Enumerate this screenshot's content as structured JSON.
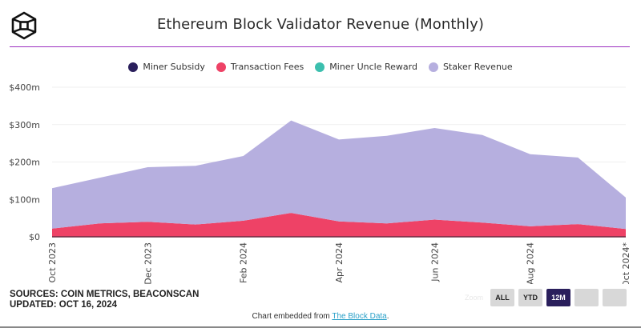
{
  "header": {
    "logo": "the-block-logo",
    "title": "Ethereum Block Validator Revenue (Monthly)"
  },
  "legend": [
    {
      "name": "Miner Subsidy",
      "color": "#2a1f5c"
    },
    {
      "name": "Transaction Fees",
      "color": "#ee4266"
    },
    {
      "name": "Miner Uncle Reward",
      "color": "#3cbfae"
    },
    {
      "name": "Staker Revenue",
      "color": "#b6afdf"
    }
  ],
  "chart_data": {
    "type": "area",
    "stacked": true,
    "title": "Ethereum Block Validator Revenue (Monthly)",
    "xlabel": "",
    "ylabel": "",
    "ylim": [
      0,
      400
    ],
    "y_unit": "USD millions",
    "y_ticks": [
      "$0",
      "$100m",
      "$200m",
      "$300m",
      "$400m"
    ],
    "y_tick_values": [
      0,
      100,
      200,
      300,
      400
    ],
    "grid": true,
    "legend_position": "top-center",
    "x": [
      "Oct 2023",
      "Nov 2023",
      "Dec 2023",
      "Jan 2024",
      "Feb 2024",
      "Mar 2024",
      "Apr 2024",
      "May 2024",
      "Jun 2024",
      "Jul 2024",
      "Aug 2024",
      "Sep 2024",
      "Oct 2024*"
    ],
    "x_tick_labels": [
      "Oct 2023",
      "Dec 2023",
      "Feb 2024",
      "Apr 2024",
      "Jun 2024",
      "Aug 2024",
      "Oct 2024*"
    ],
    "x_tick_indices": [
      0,
      2,
      4,
      6,
      8,
      10,
      12
    ],
    "series": [
      {
        "name": "Miner Subsidy",
        "color": "#2a1f5c",
        "values": [
          0,
          0,
          0,
          0,
          0,
          0,
          0,
          0,
          0,
          0,
          0,
          0,
          0
        ]
      },
      {
        "name": "Transaction Fees",
        "color": "#ee4266",
        "values": [
          22,
          36,
          40,
          33,
          43,
          64,
          41,
          36,
          46,
          38,
          28,
          34,
          21
        ]
      },
      {
        "name": "Miner Uncle Reward",
        "color": "#3cbfae",
        "values": [
          0,
          0,
          0,
          0,
          0,
          0,
          0,
          0,
          0,
          0,
          0,
          0,
          0
        ]
      },
      {
        "name": "Staker Revenue",
        "color": "#b6afdf",
        "values": [
          108,
          122,
          146,
          157,
          173,
          247,
          219,
          234,
          245,
          234,
          193,
          178,
          84
        ]
      }
    ]
  },
  "footer": {
    "sources": "SOURCES: COIN METRICS, BEACONSCAN",
    "updated": "UPDATED: OCT 16, 2024",
    "embed_prefix": "Chart embedded from ",
    "embed_link": "The Block Data",
    "embed_suffix": "."
  },
  "zoom": {
    "label": "Zoom",
    "buttons": [
      {
        "label": "ALL",
        "active": false
      },
      {
        "label": "YTD",
        "active": false
      },
      {
        "label": "12M",
        "active": true
      },
      {
        "label": "",
        "active": false
      },
      {
        "label": "",
        "active": false
      }
    ]
  }
}
